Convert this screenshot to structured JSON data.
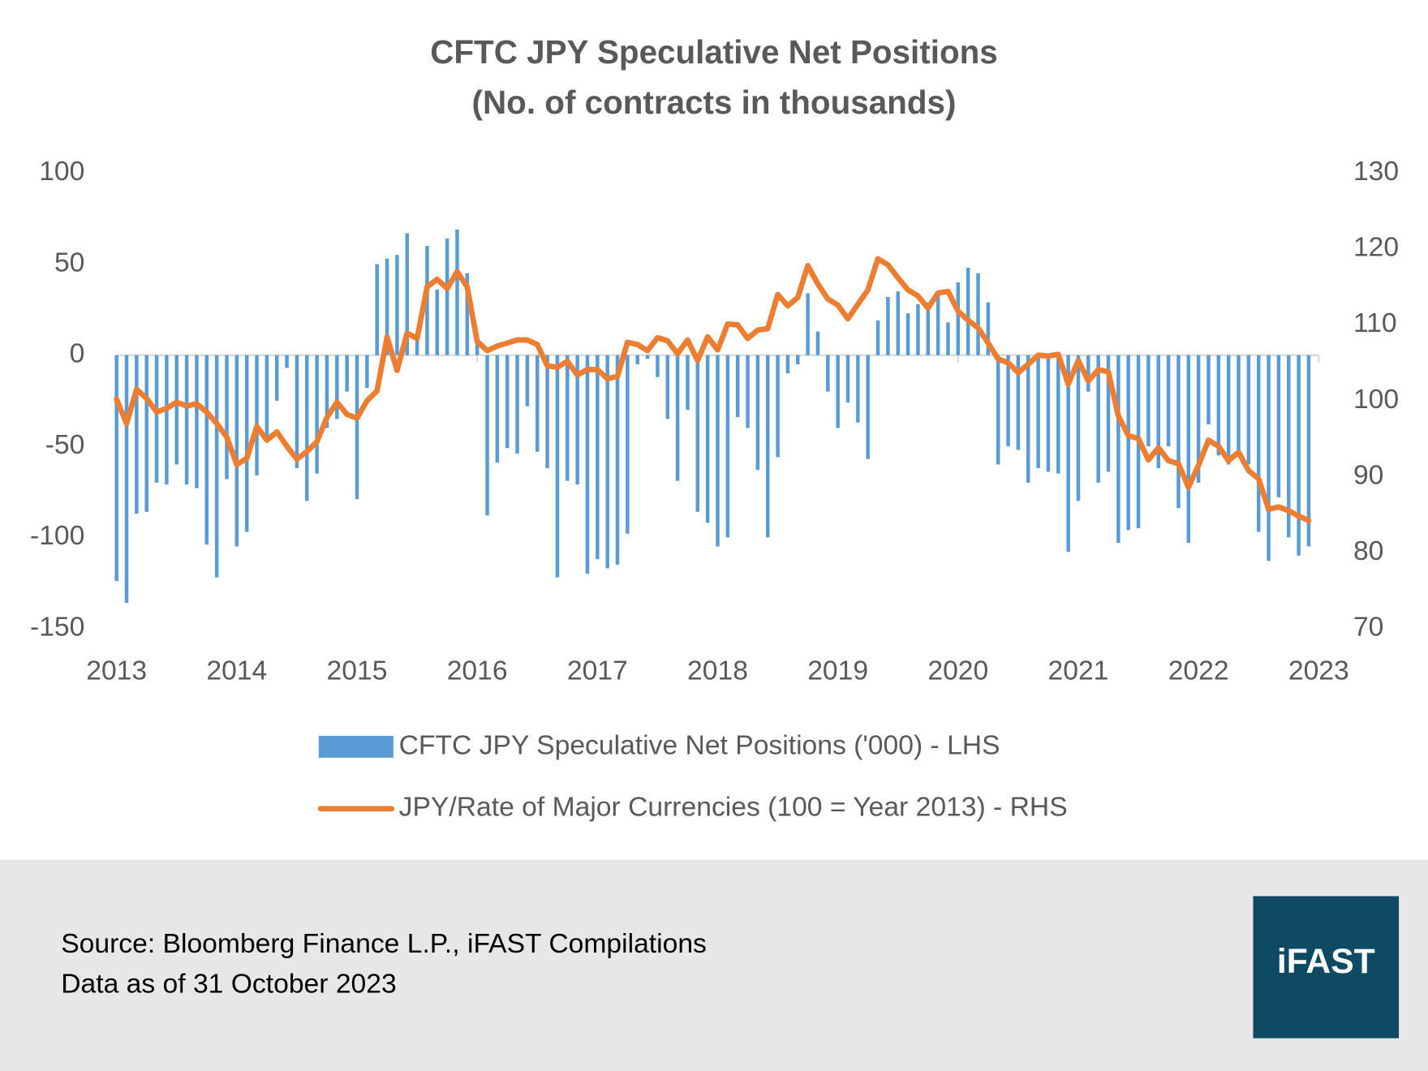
{
  "chart_data": {
    "type": "combo",
    "title": "CFTC JPY Speculative Net Positions",
    "subtitle": "(No. of contracts in thousands)",
    "categories": [
      "2013",
      null,
      null,
      null,
      null,
      null,
      null,
      null,
      null,
      null,
      null,
      null,
      "2014",
      null,
      null,
      null,
      null,
      null,
      null,
      null,
      null,
      null,
      null,
      null,
      "2015",
      null,
      null,
      null,
      null,
      null,
      null,
      null,
      null,
      null,
      null,
      null,
      "2016",
      null,
      null,
      null,
      null,
      null,
      null,
      null,
      null,
      null,
      null,
      null,
      "2017",
      null,
      null,
      null,
      null,
      null,
      null,
      null,
      null,
      null,
      null,
      null,
      "2018",
      null,
      null,
      null,
      null,
      null,
      null,
      null,
      null,
      null,
      null,
      null,
      "2019",
      null,
      null,
      null,
      null,
      null,
      null,
      null,
      null,
      null,
      null,
      null,
      "2020",
      null,
      null,
      null,
      null,
      null,
      null,
      null,
      null,
      null,
      null,
      null,
      "2021",
      null,
      null,
      null,
      null,
      null,
      null,
      null,
      null,
      null,
      null,
      null,
      "2022",
      null,
      null,
      null,
      null,
      null,
      null,
      null,
      null,
      null,
      null,
      null,
      "2023"
    ],
    "series": [
      {
        "name": "CFTC JPY Speculative Net Positions ('000) - LHS",
        "type": "bar",
        "color": "#5b9bd5",
        "values": [
          -124,
          -136,
          -87,
          -86,
          -70,
          -71,
          -60,
          -71,
          -73,
          -104,
          -122,
          -68,
          -105,
          -97,
          -66,
          -45,
          -25,
          -7,
          -62,
          -80,
          -65,
          -40,
          -35,
          -20,
          -79,
          -18,
          50,
          53,
          55,
          67,
          13,
          60,
          36,
          64,
          69,
          45,
          10,
          -88,
          -59,
          -51,
          -54,
          -28,
          -53,
          -62,
          -122,
          -69,
          -71,
          -120,
          -112,
          -117,
          -115,
          -98,
          -5,
          -2,
          -12,
          -35,
          -69,
          -30,
          -86,
          -92,
          -105,
          -100,
          -34,
          -40,
          -63,
          -100,
          -56,
          -10,
          -5,
          34,
          13,
          -20,
          -40,
          -26,
          -37,
          -57,
          19,
          32,
          35,
          23,
          28,
          29,
          34,
          18,
          40,
          48,
          45,
          29,
          -60,
          -50,
          -52,
          -70,
          -62,
          -64,
          -65,
          -108,
          -80,
          -20,
          -70,
          -64,
          -103,
          -96,
          -95,
          -50,
          -62,
          -50,
          -84,
          -103,
          -70,
          -38,
          -55,
          -60,
          -55,
          -60,
          -97,
          -113,
          -78,
          -100,
          -110,
          -105,
          null
        ]
      },
      {
        "name": "JPY/Rate of Major Currencies (100 = Year 2013) - RHS",
        "type": "line",
        "axis": "y2",
        "color": "#ed7d31",
        "values": [
          100.2,
          97,
          101.5,
          100.3,
          98.5,
          99,
          99.8,
          99.3,
          99.6,
          98.5,
          97,
          95.2,
          91.6,
          92.4,
          96.6,
          94.8,
          95.9,
          94,
          92.3,
          93.3,
          94.6,
          97.8,
          99.8,
          98.2,
          97.7,
          100,
          101.3,
          108.4,
          104,
          108.9,
          108.2,
          115,
          116,
          114.8,
          117,
          115,
          107.8,
          106.6,
          107.2,
          107.6,
          108,
          108,
          107.4,
          104.6,
          104.4,
          105.2,
          103.4,
          104.1,
          104.1,
          102.9,
          103.2,
          107.7,
          107.4,
          106.6,
          108.3,
          107.9,
          106.2,
          108,
          105.3,
          108.4,
          106.7,
          110.1,
          110,
          108.2,
          109.3,
          109.5,
          114,
          112.5,
          113.6,
          117.8,
          115.4,
          113.4,
          112.6,
          110.8,
          112.7,
          114.6,
          118.7,
          117.9,
          116.2,
          114.6,
          113.8,
          112.2,
          114.2,
          114.4,
          111.8,
          110.6,
          109.6,
          107.6,
          105.5,
          105,
          103.7,
          104.8,
          106,
          105.9,
          106.1,
          102.2,
          105.3,
          102.6,
          104.1,
          103.8,
          98,
          95.4,
          95,
          92.2,
          93.8,
          92.1,
          91.7,
          88.6,
          91.5,
          94.8,
          94,
          92.1,
          93.2,
          90.8,
          89.7,
          85.7,
          86,
          85.5,
          84.8,
          84.2,
          null
        ]
      }
    ],
    "ylim": [
      -150,
      100
    ],
    "yticks": [
      -150,
      -100,
      -50,
      0,
      50,
      100
    ],
    "y2lim": [
      70,
      130
    ],
    "y2ticks": [
      70,
      80,
      90,
      100,
      110,
      120,
      130
    ],
    "grid": false,
    "legend": "bottom",
    "notes": [
      "Source: Bloomberg Finance L.P., iFAST Compilations",
      "Data as of 31 October 2023"
    ],
    "logo": "iFAST"
  }
}
